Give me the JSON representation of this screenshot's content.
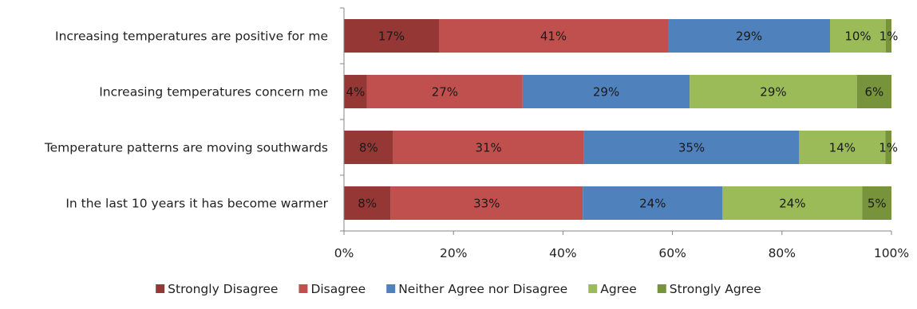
{
  "chart_data": {
    "type": "bar",
    "orientation": "horizontal",
    "stacked": true,
    "percent_stacked": true,
    "categories": [
      "Increasing temperatures are positive for me",
      "Increasing temperatures concern me",
      "Temperature patterns are moving southwards",
      "In the last 10 years it has become warmer"
    ],
    "series": [
      {
        "name": "Strongly Disagree",
        "color": "#953735",
        "values": [
          17,
          4,
          8,
          8
        ],
        "labels": [
          "17%",
          "4%",
          "8%",
          "8%"
        ]
      },
      {
        "name": "Disagree",
        "color": "#C0504D",
        "values": [
          41,
          27,
          31,
          33
        ],
        "labels": [
          "41%",
          "27%",
          "31%",
          "33%"
        ]
      },
      {
        "name": "Neither Agree nor Disagree",
        "color": "#4F81BD",
        "values": [
          29,
          29,
          35,
          24
        ],
        "labels": [
          "29%",
          "29%",
          "35%",
          "24%"
        ]
      },
      {
        "name": "Agree",
        "color": "#9BBB59",
        "values": [
          10,
          29,
          14,
          24
        ],
        "labels": [
          "10%",
          "29%",
          "14%",
          "24%"
        ]
      },
      {
        "name": "Strongly Agree",
        "color": "#77933C",
        "values": [
          1,
          6,
          1,
          5
        ],
        "labels": [
          "1%",
          "6%",
          "1%",
          "5%"
        ]
      }
    ],
    "xlim": [
      0,
      100
    ],
    "ticks": [
      "0%",
      "20%",
      "40%",
      "60%",
      "80%",
      "100%"
    ],
    "title": "",
    "xlabel": "",
    "ylabel": "",
    "grid": false,
    "legend_position": "bottom"
  }
}
